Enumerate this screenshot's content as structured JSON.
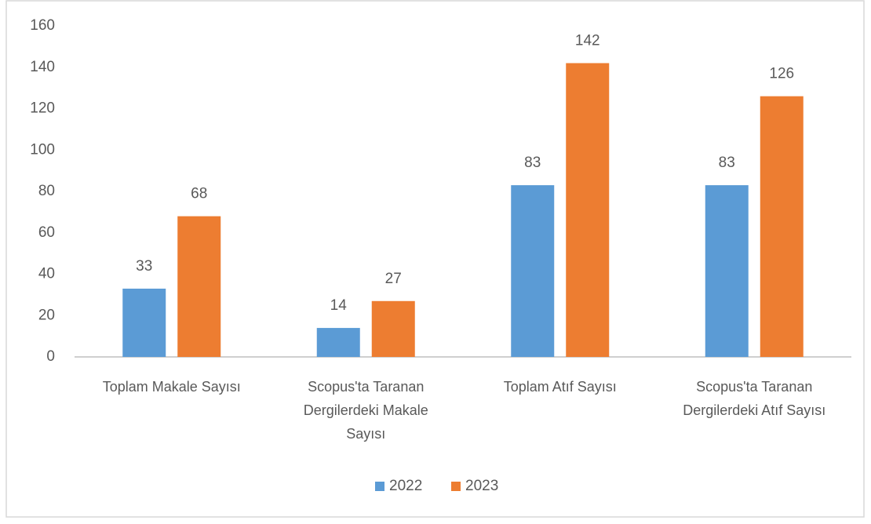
{
  "chart_data": {
    "type": "bar",
    "categories": [
      "Toplam Makale Sayısı",
      "Scopus'ta Taranan Dergilerdeki Makale Sayısı",
      "Toplam Atıf Sayısı",
      "Scopus'ta Taranan Dergilerdeki Atıf Sayısı"
    ],
    "series": [
      {
        "name": "2022",
        "color": "#5b9bd5",
        "values": [
          33,
          14,
          83,
          83
        ]
      },
      {
        "name": "2023",
        "color": "#ed7d31",
        "values": [
          68,
          27,
          142,
          126
        ]
      }
    ],
    "ylim": [
      0,
      160
    ],
    "yticks": [
      0,
      20,
      40,
      60,
      80,
      100,
      120,
      140,
      160
    ],
    "grid": false,
    "legend": "bottom"
  }
}
